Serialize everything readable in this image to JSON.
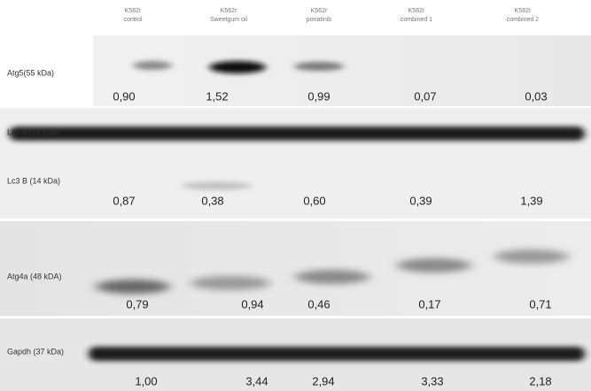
{
  "lanes": [
    {
      "line1": "K562r",
      "line2": "control"
    },
    {
      "line1": "K562r",
      "line2": "Sweetgum oil"
    },
    {
      "line1": "K562r",
      "line2": "ponatinib"
    },
    {
      "line1": "K562r",
      "line2": "combined 1"
    },
    {
      "line1": "K562r",
      "line2": "combined 2"
    }
  ],
  "panels": [
    {
      "labels": [
        "Atg5(55 kDa)"
      ],
      "values": [
        "0,90",
        "1,52",
        "0,99",
        "0,07",
        "0,03"
      ]
    },
    {
      "labels": [
        "Lc3 A (16 kDa)",
        "Lc3 B (14 kDa)"
      ],
      "values": [
        "0,87",
        "0,38",
        "0,60",
        "0,39",
        "1,39"
      ]
    },
    {
      "labels": [
        "Atg4a (48 kDA)"
      ],
      "values": [
        "0,79",
        "0,94",
        "0,46",
        "0,17",
        "0,71"
      ]
    },
    {
      "labels": [
        "Gapdh (37 kDa)"
      ],
      "values": [
        "1,00",
        "3,44",
        "2,94",
        "3,33",
        "2,18"
      ]
    }
  ]
}
